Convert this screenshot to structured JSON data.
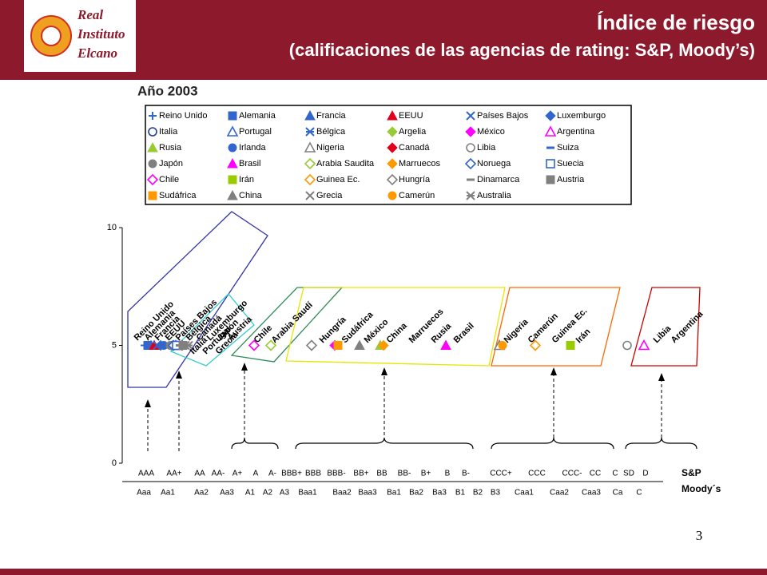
{
  "header": {
    "logo": [
      "Real",
      "Instituto",
      "Elcano"
    ],
    "title": "Índice de riesgo",
    "subtitle": "(calificaciones de las agencias de rating: S&P, Moody’s)"
  },
  "chart_data": {
    "type": "scatter",
    "title": "Año 2003",
    "ylim": [
      0,
      10
    ],
    "yticks": [
      0,
      5,
      10
    ],
    "categories": [
      "AAA",
      "AA+",
      "AA",
      "AA-",
      "A+",
      "A",
      "A-",
      "BBB+",
      "BBB",
      "BBB-",
      "BB+",
      "BB",
      "BB-",
      "B+",
      "B",
      "B-",
      "CCC+",
      "CCC",
      "CCC-",
      "CC",
      "C",
      "SD",
      "D"
    ],
    "categories2": [
      "Aaa",
      "Aa1",
      "Aa2",
      "Aa3",
      "A1",
      "A2",
      "A3",
      "Baa1",
      "Baa2",
      "Baa3",
      "Ba1",
      "Ba2",
      "Ba3",
      "B1",
      "B2",
      "B3",
      "Caa1",
      "Caa2",
      "Caa3",
      "Ca",
      "C"
    ],
    "xlabel": "S&P",
    "xlabel2": "Moody´s",
    "series": [
      {
        "name": "Reino Unido",
        "color": "#3366cc",
        "marker": "plus",
        "x": "AAA",
        "values": [
          5
        ]
      },
      {
        "name": "Alemania",
        "color": "#3366cc",
        "marker": "square",
        "x": "AAA",
        "values": [
          5
        ]
      },
      {
        "name": "Francia",
        "color": "#3366cc",
        "marker": "triangle",
        "x": "AAA",
        "values": [
          5
        ]
      },
      {
        "name": "EEUU",
        "color": "#e0001b",
        "marker": "triangle",
        "x": "AAA",
        "values": [
          5
        ]
      },
      {
        "name": "Países Bajos",
        "color": "#3366cc",
        "marker": "x",
        "x": "AAA",
        "values": [
          5
        ]
      },
      {
        "name": "Luxemburgo",
        "color": "#3366cc",
        "marker": "diamond",
        "x": "AAA",
        "values": [
          5
        ]
      },
      {
        "name": "Italia",
        "color": "#1f3f9f",
        "marker": "circle-open",
        "x": "AA+",
        "values": [
          5
        ]
      },
      {
        "name": "Portugal",
        "color": "#3366cc",
        "marker": "triangle-open",
        "x": "AA+",
        "values": [
          5
        ]
      },
      {
        "name": "Bélgica",
        "color": "#3366cc",
        "marker": "asterisk",
        "x": "AA+",
        "values": [
          5
        ]
      },
      {
        "name": "Argelia",
        "color": "#99cc33",
        "marker": "diamond",
        "x": null,
        "values": [
          null
        ]
      },
      {
        "name": "México",
        "color": "#ff00ff",
        "marker": "diamond",
        "x": "BBB-",
        "values": [
          5
        ]
      },
      {
        "name": "Argentina",
        "color": "#ff00ff",
        "marker": "triangle-open",
        "x": "D",
        "values": [
          5
        ]
      },
      {
        "name": "Rusia",
        "color": "#99cc33",
        "marker": "triangle",
        "x": "BB",
        "values": [
          5
        ]
      },
      {
        "name": "Irlanda",
        "color": "#3366cc",
        "marker": "circle",
        "x": "AAA",
        "values": [
          5
        ]
      },
      {
        "name": "Nigeria",
        "color": "#808080",
        "marker": "triangle-open",
        "x": "CCC+",
        "values": [
          5
        ]
      },
      {
        "name": "Canadá",
        "color": "#e0001b",
        "marker": "diamond",
        "x": "AA+",
        "values": [
          5
        ]
      },
      {
        "name": "Libia",
        "color": "#808080",
        "marker": "circle-open",
        "x": "SD",
        "values": [
          5
        ]
      },
      {
        "name": "Suiza",
        "color": "#3366cc",
        "marker": "dash",
        "x": "AAA",
        "values": [
          5
        ]
      },
      {
        "name": "Japón",
        "color": "#808080",
        "marker": "circle",
        "x": "AAA",
        "values": [
          5
        ]
      },
      {
        "name": "Brasil",
        "color": "#ff00ff",
        "marker": "triangle",
        "x": "B",
        "values": [
          5
        ]
      },
      {
        "name": "Arabia Saudita",
        "color": "#99cc33",
        "marker": "diamond-open",
        "x": "A-",
        "values": [
          5
        ]
      },
      {
        "name": "Marruecos",
        "color": "#ff9900",
        "marker": "diamond",
        "x": "BB",
        "values": [
          5
        ]
      },
      {
        "name": "Noruega",
        "color": "#3366cc",
        "marker": "diamond-open",
        "x": "AAA",
        "values": [
          5
        ]
      },
      {
        "name": "Suecia",
        "color": "#3366cc",
        "marker": "square-open",
        "x": "AAA",
        "values": [
          5
        ]
      },
      {
        "name": "Chile",
        "color": "#ff00ff",
        "marker": "diamond-open",
        "x": "A",
        "values": [
          5
        ]
      },
      {
        "name": "Irán",
        "color": "#99cc00",
        "marker": "square",
        "x": "CCC-",
        "values": [
          5
        ]
      },
      {
        "name": "Guinea Ec.",
        "color": "#ff9900",
        "marker": "diamond-open",
        "x": "CCC",
        "values": [
          5
        ]
      },
      {
        "name": "Hungría",
        "color": "#808080",
        "marker": "diamond-open",
        "x": "BBB",
        "values": [
          5
        ]
      },
      {
        "name": "Dinamarca",
        "color": "#808080",
        "marker": "dash",
        "x": "AAA",
        "values": [
          5
        ]
      },
      {
        "name": "Austria",
        "color": "#808080",
        "marker": "square",
        "x": "AAA",
        "values": [
          5
        ]
      },
      {
        "name": "Sudáfrica",
        "color": "#ff9900",
        "marker": "square",
        "x": "BBB-",
        "values": [
          5
        ]
      },
      {
        "name": "China",
        "color": "#808080",
        "marker": "triangle",
        "x": "BB+",
        "values": [
          5
        ]
      },
      {
        "name": "Grecia",
        "color": "#808080",
        "marker": "x",
        "x": "AA+",
        "values": [
          5
        ]
      },
      {
        "name": "Camerún",
        "color": "#ff9900",
        "marker": "circle",
        "x": "CCC+",
        "values": [
          5
        ]
      },
      {
        "name": "Australia",
        "color": "#808080",
        "marker": "asterisk",
        "x": "AA+",
        "values": [
          5
        ]
      }
    ],
    "groups": [
      {
        "color": "#3333aa",
        "labels": [
          "Reino Unido",
          "Alemania",
          "Francia",
          "EEUU",
          "Países Bajos",
          "Bélgica",
          "Canadá",
          "Luxemburgo",
          "Japón",
          "Austria"
        ]
      },
      {
        "color": "#33cccc",
        "labels": [
          "Italia",
          "Portugal",
          "Grecia"
        ]
      },
      {
        "color": "#2e8b57",
        "labels": [
          "Chile",
          "Arabia Saudí"
        ]
      },
      {
        "color": "#ffff33",
        "labels": [
          "Hungría",
          "Sudáfrica",
          "México",
          "China",
          "Marruecos",
          "Rusia",
          "Brasil"
        ]
      },
      {
        "color": "#ff6600",
        "labels": [
          "Nigeria",
          "Camerún",
          "Guinea Ec.",
          "Irán"
        ]
      },
      {
        "color": "#cc0000",
        "labels": [
          "Libia",
          "Argentina"
        ]
      }
    ]
  },
  "page_number": 3
}
